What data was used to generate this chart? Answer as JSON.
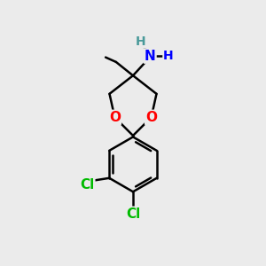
{
  "bg_color": "#ebebeb",
  "bond_color": "#000000",
  "bond_width": 1.8,
  "atom_colors": {
    "O": "#ff0000",
    "N": "#0000ff",
    "Cl": "#00bb00",
    "H_teal": "#4a9a9a",
    "H_blue": "#0000ff",
    "C": "#000000"
  },
  "font_size_atoms": 11,
  "font_size_small": 10
}
